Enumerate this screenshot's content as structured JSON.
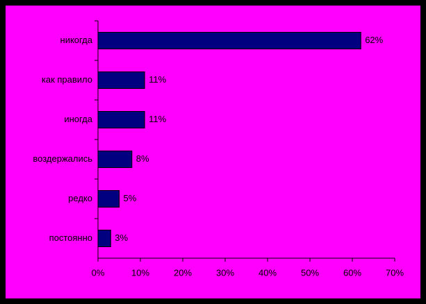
{
  "chart_data": {
    "type": "barh",
    "categories": [
      "никогда",
      "как правило",
      "иногда",
      "воздержались",
      "редко",
      "постоянно"
    ],
    "values": [
      62,
      11,
      11,
      8,
      5,
      3
    ],
    "value_labels": [
      "62%",
      "11%",
      "11%",
      "8%",
      "5%",
      "3%"
    ],
    "color": "#000080",
    "xlim": [
      0,
      70
    ],
    "xticks": [
      {
        "value": 0,
        "label": "0%"
      },
      {
        "value": 10,
        "label": "10%"
      },
      {
        "value": 20,
        "label": "20%"
      },
      {
        "value": 30,
        "label": "30%"
      },
      {
        "value": 40,
        "label": "40%"
      },
      {
        "value": 50,
        "label": "50%"
      },
      {
        "value": 60,
        "label": "60%"
      },
      {
        "value": 70,
        "label": "70%"
      }
    ]
  }
}
